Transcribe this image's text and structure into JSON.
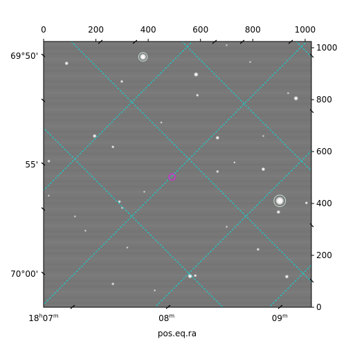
{
  "chart_data": {
    "type": "scatter",
    "title": "",
    "xlabel": "pos.eq.ra",
    "ylabel": "",
    "xlim": [
      0,
      1024
    ],
    "ylim": [
      0,
      1024
    ],
    "pixel_x_ticks": [
      "0",
      "200",
      "400",
      "600",
      "800",
      "1000"
    ],
    "pixel_y_ticks": [
      "0",
      "200",
      "400",
      "600",
      "800",
      "1000"
    ],
    "ra_ticks": [
      {
        "label": "18h07m",
        "h": "18",
        "m": "07",
        "x": 0
      },
      {
        "label": "08m",
        "h": "",
        "m": "08",
        "x": 470
      },
      {
        "label": "09m",
        "h": "",
        "m": "09",
        "x": 903
      }
    ],
    "dec_ticks": [
      {
        "label": "69°50'",
        "y": 968
      },
      {
        "label": "55'",
        "y": 550
      },
      {
        "label": "70°00'",
        "y": 128
      }
    ],
    "marker": {
      "x": 491,
      "y": 502,
      "color": "#cc33cc"
    },
    "grid_color": "#00e5e5",
    "image_background": "#787878",
    "stars": [
      {
        "x": 380,
        "y": 965,
        "r": 9,
        "b": 1.0
      },
      {
        "x": 88,
        "y": 940,
        "r": 5,
        "b": 0.9
      },
      {
        "x": 583,
        "y": 897,
        "r": 6,
        "b": 0.95
      },
      {
        "x": 299,
        "y": 870,
        "r": 4,
        "b": 0.8
      },
      {
        "x": 588,
        "y": 817,
        "r": 4,
        "b": 0.8
      },
      {
        "x": 935,
        "y": 825,
        "r": 3,
        "b": 0.7
      },
      {
        "x": 965,
        "y": 805,
        "r": 6,
        "b": 0.95
      },
      {
        "x": 195,
        "y": 660,
        "r": 5,
        "b": 0.9
      },
      {
        "x": 665,
        "y": 653,
        "r": 5,
        "b": 0.9
      },
      {
        "x": 265,
        "y": 618,
        "r": 4,
        "b": 0.8
      },
      {
        "x": 730,
        "y": 558,
        "r": 3,
        "b": 0.75
      },
      {
        "x": 840,
        "y": 532,
        "r": 5,
        "b": 0.95
      },
      {
        "x": 20,
        "y": 563,
        "r": 4,
        "b": 0.85
      },
      {
        "x": 665,
        "y": 523,
        "r": 4,
        "b": 0.8
      },
      {
        "x": 903,
        "y": 410,
        "r": 12,
        "b": 1.0
      },
      {
        "x": 898,
        "y": 367,
        "r": 5,
        "b": 0.9
      },
      {
        "x": 1005,
        "y": 402,
        "r": 4,
        "b": 0.85
      },
      {
        "x": 290,
        "y": 407,
        "r": 4,
        "b": 0.8
      },
      {
        "x": 300,
        "y": 383,
        "r": 3,
        "b": 0.7
      },
      {
        "x": 820,
        "y": 223,
        "r": 4,
        "b": 0.8
      },
      {
        "x": 560,
        "y": 120,
        "r": 6,
        "b": 0.95
      },
      {
        "x": 580,
        "y": 122,
        "r": 4,
        "b": 0.85
      },
      {
        "x": 930,
        "y": 118,
        "r": 5,
        "b": 0.9
      },
      {
        "x": 265,
        "y": 90,
        "r": 4,
        "b": 0.75
      },
      {
        "x": 425,
        "y": 65,
        "r": 3,
        "b": 0.7
      },
      {
        "x": 700,
        "y": 310,
        "r": 3,
        "b": 0.7
      },
      {
        "x": 160,
        "y": 295,
        "r": 3,
        "b": 0.7
      },
      {
        "x": 320,
        "y": 230,
        "r": 3,
        "b": 0.7
      },
      {
        "x": 450,
        "y": 712,
        "r": 3,
        "b": 0.7
      },
      {
        "x": 790,
        "y": 945,
        "r": 3,
        "b": 0.65
      },
      {
        "x": 700,
        "y": 1010,
        "r": 3,
        "b": 0.65
      },
      {
        "x": 840,
        "y": 660,
        "r": 3,
        "b": 0.65
      },
      {
        "x": 120,
        "y": 350,
        "r": 3,
        "b": 0.65
      },
      {
        "x": 20,
        "y": 430,
        "r": 3,
        "b": 0.65
      },
      {
        "x": 385,
        "y": 445,
        "r": 3,
        "b": 0.65
      }
    ]
  }
}
